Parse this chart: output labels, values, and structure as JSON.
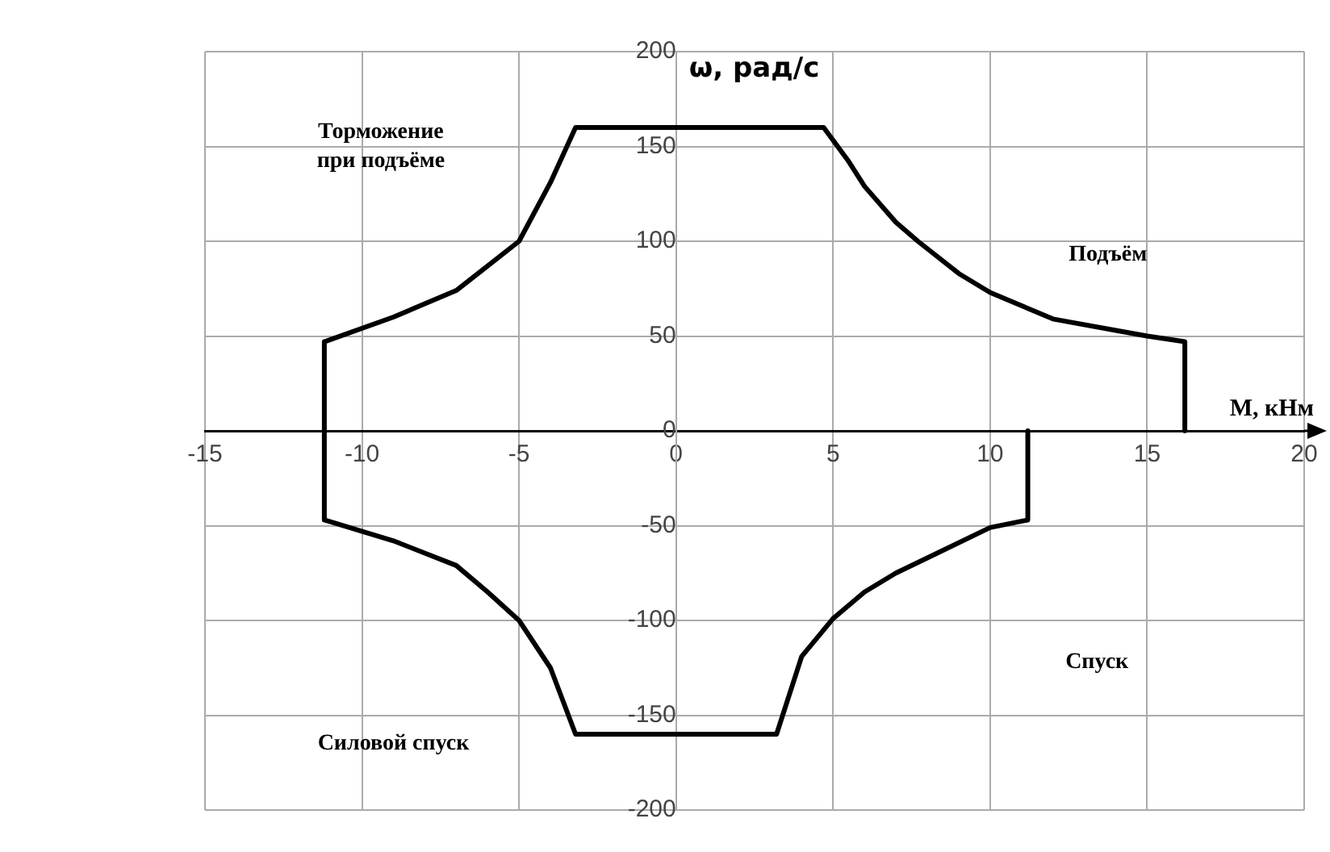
{
  "chart_data": {
    "type": "line",
    "xlabel": "М, кНм",
    "ylabel": "ω, рад/с",
    "annotations": [
      "Торможение\nпри подъёме",
      "Подъём",
      "Спуск",
      "Силовой спуск"
    ],
    "xlim": [
      -15,
      20
    ],
    "xticks": [
      -15,
      -10,
      -5,
      0,
      5,
      10,
      15,
      20
    ],
    "ylim": [
      -200,
      200
    ],
    "yticks": [
      -200,
      -150,
      -100,
      -50,
      0,
      50,
      100,
      150,
      200
    ],
    "grid": true,
    "legend": false,
    "marker": "none",
    "line_style": "solid",
    "series": [
      {
        "type": "line",
        "color": "#000000",
        "x": [
          16.2,
          16.2,
          15,
          14,
          12,
          10,
          9,
          7.7,
          7,
          6,
          5.5,
          4.7,
          -3.2,
          -4,
          -5,
          -6,
          -7,
          -9,
          -11.2,
          -11.2,
          -9,
          -7,
          -6,
          -5,
          -4,
          -3.2,
          3.2,
          4,
          5,
          6,
          7,
          8,
          10,
          11.2,
          11.2
        ],
        "values": [
          0,
          47,
          50,
          53,
          59,
          73,
          83,
          100,
          110,
          129,
          142,
          160,
          160,
          131,
          100,
          87,
          74,
          60,
          47,
          -47,
          -58,
          -71,
          -85,
          -100,
          -125,
          -160,
          -160,
          -119,
          -99,
          -85,
          -75,
          -67,
          -51,
          -47,
          0
        ]
      }
    ]
  }
}
